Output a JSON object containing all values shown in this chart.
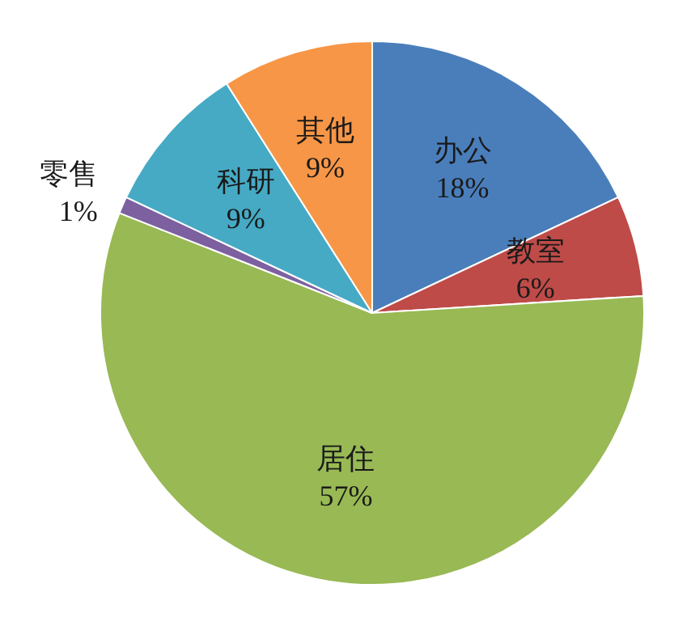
{
  "chart_data": {
    "type": "pie",
    "categories": [
      "办公",
      "教室",
      "居住",
      "零售",
      "科研",
      "其他"
    ],
    "values": [
      18,
      6,
      57,
      1,
      9,
      9
    ],
    "value_labels": [
      "18%",
      "6%",
      "57%",
      "1%",
      "9%",
      "9%"
    ],
    "colors": [
      "#4a7ebb",
      "#be4b48",
      "#98b954",
      "#7d60a0",
      "#46aac5",
      "#f79646"
    ],
    "legend": false
  }
}
